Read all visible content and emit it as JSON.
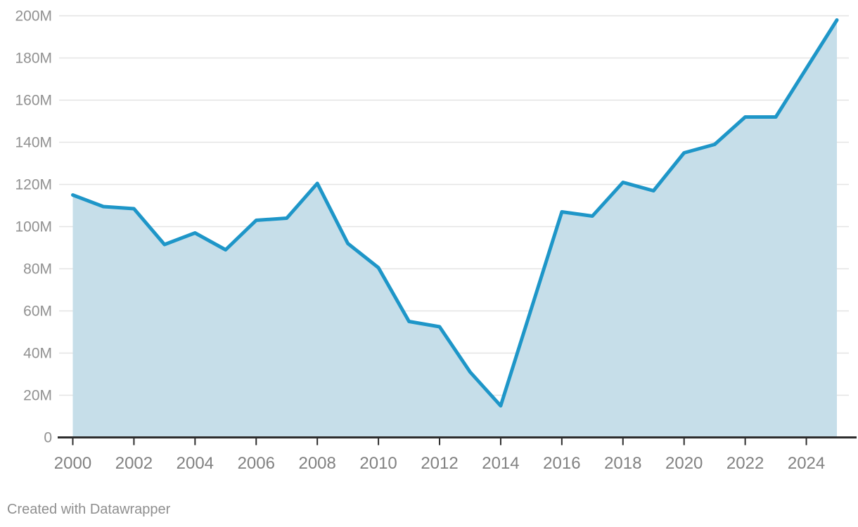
{
  "footer": {
    "attribution": "Created with Datawrapper"
  },
  "chart_data": {
    "type": "area",
    "unit_suffix": "M",
    "x": [
      2000,
      2001,
      2002,
      2003,
      2004,
      2005,
      2006,
      2007,
      2008,
      2009,
      2010,
      2011,
      2012,
      2013,
      2014,
      2015,
      2016,
      2017,
      2018,
      2019,
      2020,
      2021,
      2022,
      2023,
      2024,
      2025
    ],
    "values_millions": [
      115,
      109.5,
      108.5,
      91.5,
      97,
      89,
      103,
      104,
      120.5,
      92,
      80.5,
      55,
      52.5,
      31,
      15,
      61,
      107,
      105,
      121,
      117,
      135,
      139,
      152,
      152,
      175,
      198
    ],
    "ylim_millions": [
      0,
      200
    ],
    "yticks": {
      "values_millions": [
        0,
        20,
        40,
        60,
        80,
        100,
        120,
        140,
        160,
        180,
        200
      ],
      "labels": [
        "0",
        "20M",
        "40M",
        "60M",
        "80M",
        "100M",
        "120M",
        "140M",
        "160M",
        "180M",
        "200M"
      ]
    },
    "xticks": {
      "values": [
        2000,
        2002,
        2004,
        2006,
        2008,
        2010,
        2012,
        2014,
        2016,
        2018,
        2020,
        2022,
        2024
      ],
      "labels": [
        "2000",
        "2002",
        "2004",
        "2006",
        "2008",
        "2010",
        "2012",
        "2014",
        "2016",
        "2018",
        "2020",
        "2022",
        "2024"
      ]
    },
    "grid": true,
    "legend": "none",
    "colors": {
      "line": "#1e96c8",
      "area_fill": "#c6dee9",
      "gridline": "#e4e4e4",
      "axis": "#2d2d2d",
      "y_tick_label": "#919191",
      "x_tick_label": "#818181",
      "attribution_text": "#8f8f8f",
      "background": "#ffffff"
    }
  }
}
